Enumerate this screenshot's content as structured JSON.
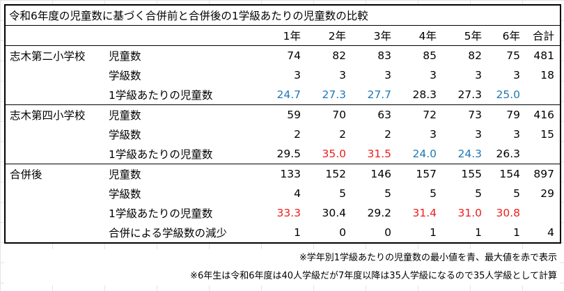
{
  "title": "令和6年度の児童数に基づく合併前と合併後の1学級あたりの児童数の比較",
  "headers": [
    "",
    "",
    "1年",
    "2年",
    "3年",
    "4年",
    "5年",
    "6年",
    "合計"
  ],
  "sections": [
    {
      "name": "志木第二小学校",
      "rows": [
        {
          "label": "児童数",
          "cells": [
            {
              "v": "74"
            },
            {
              "v": "82"
            },
            {
              "v": "83"
            },
            {
              "v": "85"
            },
            {
              "v": "82"
            },
            {
              "v": "75"
            },
            {
              "v": "481"
            }
          ]
        },
        {
          "label": "学級数",
          "cells": [
            {
              "v": "3"
            },
            {
              "v": "3"
            },
            {
              "v": "3"
            },
            {
              "v": "3"
            },
            {
              "v": "3"
            },
            {
              "v": "3"
            },
            {
              "v": "18"
            }
          ]
        },
        {
          "label": "1学級あたりの児童数",
          "cells": [
            {
              "v": "24.7",
              "c": "blue"
            },
            {
              "v": "27.3",
              "c": "blue"
            },
            {
              "v": "27.7",
              "c": "blue"
            },
            {
              "v": "28.3"
            },
            {
              "v": "27.3"
            },
            {
              "v": "25.0",
              "c": "blue"
            },
            {
              "v": ""
            }
          ]
        }
      ]
    },
    {
      "name": "志木第四小学校",
      "rows": [
        {
          "label": "児童数",
          "cells": [
            {
              "v": "59"
            },
            {
              "v": "70"
            },
            {
              "v": "63"
            },
            {
              "v": "72"
            },
            {
              "v": "73"
            },
            {
              "v": "79"
            },
            {
              "v": "416"
            }
          ]
        },
        {
          "label": "学級数",
          "cells": [
            {
              "v": "2"
            },
            {
              "v": "2"
            },
            {
              "v": "2"
            },
            {
              "v": "3"
            },
            {
              "v": "3"
            },
            {
              "v": "3"
            },
            {
              "v": "15"
            }
          ]
        },
        {
          "label": "1学級あたりの児童数",
          "cells": [
            {
              "v": "29.5"
            },
            {
              "v": "35.0",
              "c": "red"
            },
            {
              "v": "31.5",
              "c": "red"
            },
            {
              "v": "24.0",
              "c": "blue"
            },
            {
              "v": "24.3",
              "c": "blue"
            },
            {
              "v": "26.3"
            },
            {
              "v": ""
            }
          ]
        }
      ]
    },
    {
      "name": "合併後",
      "rows": [
        {
          "label": "児童数",
          "cells": [
            {
              "v": "133"
            },
            {
              "v": "152"
            },
            {
              "v": "146"
            },
            {
              "v": "157"
            },
            {
              "v": "155"
            },
            {
              "v": "154"
            },
            {
              "v": "897"
            }
          ]
        },
        {
          "label": "学級数",
          "cells": [
            {
              "v": "4"
            },
            {
              "v": "5"
            },
            {
              "v": "5"
            },
            {
              "v": "5"
            },
            {
              "v": "5"
            },
            {
              "v": "5"
            },
            {
              "v": "29"
            }
          ]
        },
        {
          "label": "1学級あたりの児童数",
          "cells": [
            {
              "v": "33.3",
              "c": "red"
            },
            {
              "v": "30.4"
            },
            {
              "v": "29.2"
            },
            {
              "v": "31.4",
              "c": "red"
            },
            {
              "v": "31.0",
              "c": "red"
            },
            {
              "v": "30.8",
              "c": "red"
            },
            {
              "v": ""
            }
          ]
        },
        {
          "label": "合併による学級数の減少",
          "cells": [
            {
              "v": "1"
            },
            {
              "v": "0"
            },
            {
              "v": "0"
            },
            {
              "v": "1"
            },
            {
              "v": "1"
            },
            {
              "v": "1"
            },
            {
              "v": "4"
            }
          ]
        }
      ]
    }
  ],
  "notes": [
    "※学年別1学級あたりの児童数の最小値を青、最大値を赤で表示",
    "※6年生は令和6年度は40人学級だが7年度以降は35人学級になるので35人学級として計算"
  ],
  "colors": {
    "blue": "#1f78b4",
    "red": "#ee1c1c"
  }
}
